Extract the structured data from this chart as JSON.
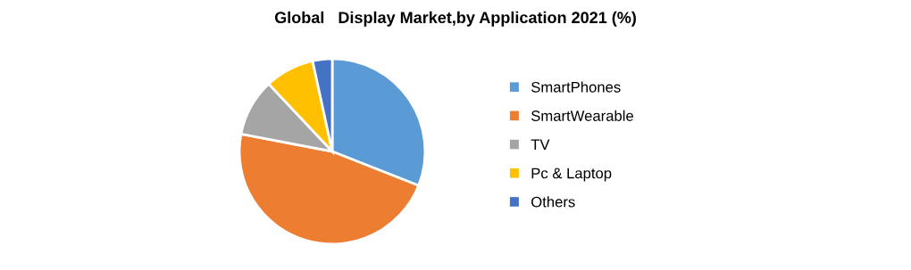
{
  "chart_data": {
    "type": "pie",
    "title": "Global   Display Market,by Application 2021 (%)",
    "categories": [
      "SmartPhones",
      "SmartWearable",
      "TV",
      "Pc & Laptop",
      "Others"
    ],
    "values": [
      31,
      47,
      10,
      8.6,
      3.4
    ],
    "colors": [
      "#5b9bd5",
      "#ed7d31",
      "#a5a5a5",
      "#ffc000",
      "#4472c4"
    ],
    "legend": "right"
  }
}
